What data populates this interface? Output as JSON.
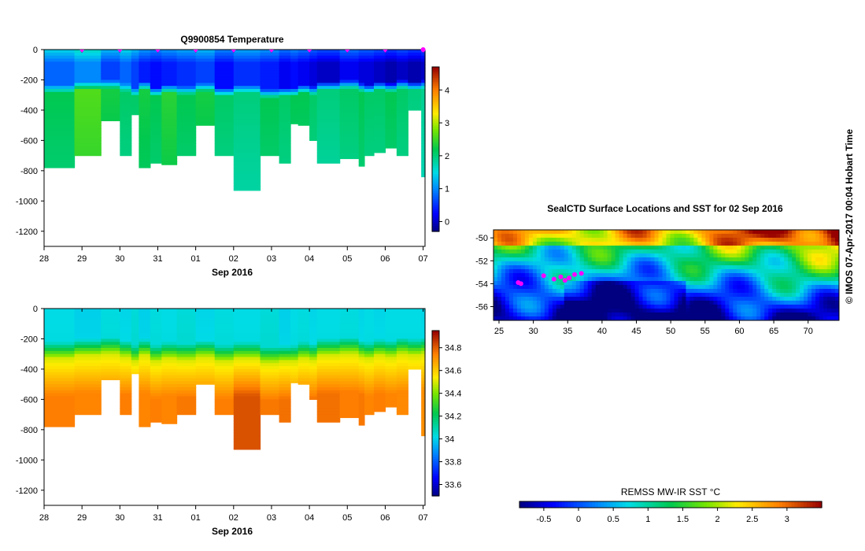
{
  "chart_data": [
    {
      "type": "heatmap",
      "title": "Q9900854  Temperature",
      "xlabel": "Sep 2016",
      "ylabel": "",
      "x_tick_labels": [
        "28",
        "29",
        "30",
        "31",
        "01",
        "02",
        "03",
        "04",
        "05",
        "06",
        "07"
      ],
      "y_tick_labels": [
        "0",
        "-200",
        "-400",
        "-600",
        "-800",
        "-1000",
        "-1200"
      ],
      "ylim": [
        -1300,
        0
      ],
      "colorbar_ticks": [
        "0",
        "1",
        "2",
        "3",
        "4"
      ],
      "colorbar_range": [
        -0.3,
        4.7
      ],
      "profile_markers": [
        1,
        2,
        3,
        4,
        5,
        6,
        7,
        8,
        9,
        10
      ],
      "profiles": [
        {
          "start": 0.0,
          "end": 0.8,
          "max_depth": 780
        },
        {
          "start": 0.8,
          "end": 1.5,
          "max_depth": 700
        },
        {
          "start": 1.5,
          "end": 2.0,
          "max_depth": 470
        },
        {
          "start": 2.0,
          "end": 2.3,
          "max_depth": 700
        },
        {
          "start": 2.3,
          "end": 2.5,
          "max_depth": 430
        },
        {
          "start": 2.5,
          "end": 2.8,
          "max_depth": 780
        },
        {
          "start": 2.8,
          "end": 3.1,
          "max_depth": 750
        },
        {
          "start": 3.1,
          "end": 3.5,
          "max_depth": 760
        },
        {
          "start": 3.5,
          "end": 4.0,
          "max_depth": 700
        },
        {
          "start": 4.0,
          "end": 4.5,
          "max_depth": 500
        },
        {
          "start": 4.5,
          "end": 5.0,
          "max_depth": 700
        },
        {
          "start": 5.0,
          "end": 5.7,
          "max_depth": 930
        },
        {
          "start": 5.7,
          "end": 6.2,
          "max_depth": 700
        },
        {
          "start": 6.2,
          "end": 6.5,
          "max_depth": 750
        },
        {
          "start": 6.5,
          "end": 6.7,
          "max_depth": 490
        },
        {
          "start": 6.7,
          "end": 7.0,
          "max_depth": 500
        },
        {
          "start": 7.0,
          "end": 7.2,
          "max_depth": 600
        },
        {
          "start": 7.2,
          "end": 7.8,
          "max_depth": 750
        },
        {
          "start": 7.8,
          "end": 8.3,
          "max_depth": 720
        },
        {
          "start": 8.3,
          "end": 8.45,
          "max_depth": 770
        },
        {
          "start": 8.45,
          "end": 8.7,
          "max_depth": 700
        },
        {
          "start": 8.7,
          "end": 9.0,
          "max_depth": 680
        },
        {
          "start": 9.0,
          "end": 9.3,
          "max_depth": 650
        },
        {
          "start": 9.3,
          "end": 9.6,
          "max_depth": 700
        },
        {
          "start": 9.6,
          "end": 9.95,
          "max_depth": 400
        },
        {
          "start": 9.95,
          "end": 10.05,
          "max_depth": 840
        }
      ],
      "surface_values": [
        0.8,
        1.0,
        0.6,
        0.8,
        0.6,
        0.4,
        0.3,
        0.4,
        0.5,
        0.6,
        0.3,
        0.5,
        0.4,
        0.2,
        0.3,
        0.2,
        0.1,
        0.0,
        0.2,
        0.1,
        0.1,
        0.0,
        -0.1,
        0.0,
        -0.1,
        0.0
      ],
      "deep_values": [
        2.2,
        2.6,
        2.3,
        2.1,
        2.1,
        2.3,
        2.2,
        2.4,
        2.2,
        2.3,
        2.1,
        2.0,
        2.2,
        2.1,
        2.2,
        2.2,
        2.1,
        2.0,
        2.1,
        2.2,
        2.1,
        2.1,
        2.2,
        2.1,
        2.0,
        1.9
      ],
      "thermocline_depths": [
        280,
        260,
        250,
        270,
        300,
        260,
        300,
        280,
        290,
        270,
        300,
        280,
        310,
        300,
        300,
        280,
        290,
        260,
        250,
        270,
        280,
        260,
        270,
        250,
        260,
        250
      ]
    },
    {
      "type": "heatmap",
      "title": "",
      "xlabel": "Sep 2016",
      "ylabel": "",
      "x_tick_labels": [
        "28",
        "29",
        "30",
        "31",
        "01",
        "02",
        "03",
        "04",
        "05",
        "06",
        "07"
      ],
      "y_tick_labels": [
        "0",
        "-200",
        "-400",
        "-600",
        "-800",
        "-1000",
        "-1200"
      ],
      "ylim": [
        -1300,
        0
      ],
      "colorbar_ticks": [
        "33.6",
        "33.8",
        "34",
        "34.2",
        "34.4",
        "34.6",
        "34.8"
      ],
      "colorbar_range": [
        33.5,
        34.95
      ],
      "profiles_same_as_above": true,
      "surface_values": [
        34.02,
        34.0,
        34.03,
        34.01,
        34.04,
        34.0,
        34.03,
        34.02,
        34.04,
        34.01,
        34.03,
        34.02,
        34.04,
        34.0,
        34.02,
        34.03,
        34.01,
        34.02,
        34.03,
        34.01,
        34.02,
        34.01,
        34.02,
        34.02,
        34.02,
        34.01
      ],
      "deep_values": [
        34.75,
        34.74,
        34.73,
        34.75,
        34.76,
        34.74,
        34.75,
        34.74,
        34.76,
        34.73,
        34.75,
        34.82,
        34.76,
        34.77,
        34.74,
        34.75,
        34.76,
        34.77,
        34.75,
        34.76,
        34.74,
        34.75,
        34.74,
        34.73,
        34.72,
        34.72
      ]
    },
    {
      "type": "heatmap",
      "title": "SealCTD Surface Locations and SST for 02 Sep 2016",
      "xlabel": "",
      "ylabel": "",
      "x_tick_labels": [
        "25",
        "30",
        "35",
        "40",
        "45",
        "50",
        "55",
        "60",
        "65",
        "70"
      ],
      "y_tick_labels": [
        "-50",
        "-52",
        "-54",
        "-56"
      ],
      "xlim": [
        24.2,
        74.5
      ],
      "ylim": [
        -57.2,
        -49.3
      ],
      "colorbar_label": "REMSS MW-IR SST °C",
      "colorbar_ticks": [
        "-0.5",
        "0",
        "0.5",
        "1",
        "1.5",
        "2",
        "2.5",
        "3"
      ],
      "colorbar_range": [
        -0.85,
        3.5
      ],
      "seal_locations": [
        [
          27.8,
          -53.9
        ],
        [
          28.2,
          -54.0
        ],
        [
          31.5,
          -53.3
        ],
        [
          33.0,
          -53.6
        ],
        [
          34.0,
          -53.4
        ],
        [
          34.6,
          -53.7
        ],
        [
          35.2,
          -53.5
        ],
        [
          36.0,
          -53.2
        ],
        [
          37.0,
          -53.1
        ]
      ]
    }
  ],
  "credit": "© IMOS 07-Apr-2017 00:04 Hobart Time",
  "colors": {
    "profile_marker": "#ff00ff",
    "blank": "#ffffff"
  }
}
